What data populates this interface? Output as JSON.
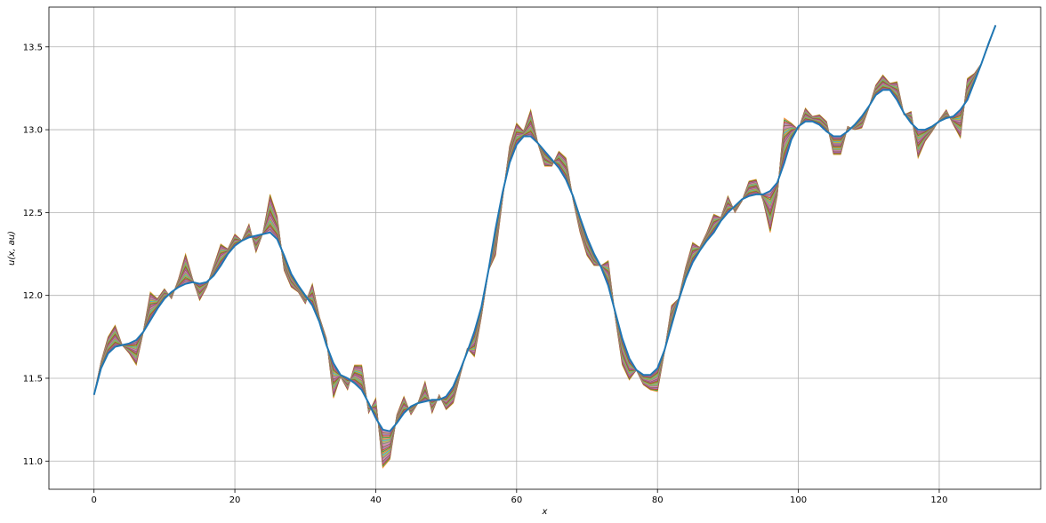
{
  "chart_data": {
    "type": "line",
    "xlabel": "x",
    "ylabel": "u(x, au)",
    "xlim": [
      -6.4,
      134.4
    ],
    "ylim": [
      10.83,
      13.74
    ],
    "grid": true,
    "x_ticks": [
      0,
      20,
      40,
      60,
      80,
      100,
      120
    ],
    "x_tick_labels": [
      "0",
      "20",
      "40",
      "60",
      "80",
      "100",
      "120"
    ],
    "y_ticks": [
      11.0,
      11.5,
      12.0,
      12.5,
      13.0,
      13.5
    ],
    "y_tick_labels": [
      "11.0",
      "11.5",
      "12.0",
      "12.5",
      "13.0",
      "13.5"
    ],
    "colors": {
      "smooth_series": "#1f77b4",
      "ensemble": [
        "#ff7f0e",
        "#2ca02c",
        "#d62728",
        "#9467bd",
        "#8c564b",
        "#e377c2",
        "#7f7f7f",
        "#bcbd22",
        "#17becf"
      ]
    },
    "x": [
      0,
      1,
      2,
      3,
      4,
      5,
      6,
      7,
      8,
      9,
      10,
      11,
      12,
      13,
      14,
      15,
      16,
      17,
      18,
      19,
      20,
      21,
      22,
      23,
      24,
      25,
      26,
      27,
      28,
      29,
      30,
      31,
      32,
      33,
      34,
      35,
      36,
      37,
      38,
      39,
      40,
      41,
      42,
      43,
      44,
      45,
      46,
      47,
      48,
      49,
      50,
      51,
      52,
      53,
      54,
      55,
      56,
      57,
      58,
      59,
      60,
      61,
      62,
      63,
      64,
      65,
      66,
      67,
      68,
      69,
      70,
      71,
      72,
      73,
      74,
      75,
      76,
      77,
      78,
      79,
      80,
      81,
      82,
      83,
      84,
      85,
      86,
      87,
      88,
      89,
      90,
      91,
      92,
      93,
      94,
      95,
      96,
      97,
      98,
      99,
      100,
      101,
      102,
      103,
      104,
      105,
      106,
      107,
      108,
      109,
      110,
      111,
      112,
      113,
      114,
      115,
      116,
      117,
      118,
      119,
      120,
      121,
      122,
      123,
      124,
      125,
      126,
      127,
      128
    ],
    "series": [
      {
        "role": "smooth",
        "values": [
          11.4,
          11.56,
          11.65,
          11.69,
          11.7,
          11.71,
          11.73,
          11.78,
          11.85,
          11.92,
          11.98,
          12.02,
          12.05,
          12.07,
          12.08,
          12.07,
          12.08,
          12.12,
          12.18,
          12.25,
          12.3,
          12.33,
          12.35,
          12.36,
          12.37,
          12.38,
          12.34,
          12.24,
          12.13,
          12.06,
          12.0,
          11.94,
          11.84,
          11.7,
          11.59,
          11.52,
          11.5,
          11.47,
          11.43,
          11.35,
          11.26,
          11.19,
          11.18,
          11.23,
          11.29,
          11.33,
          11.35,
          11.36,
          11.37,
          11.37,
          11.39,
          11.45,
          11.55,
          11.66,
          11.78,
          11.93,
          12.15,
          12.4,
          12.62,
          12.8,
          12.91,
          12.96,
          12.96,
          12.92,
          12.87,
          12.82,
          12.77,
          12.7,
          12.6,
          12.47,
          12.35,
          12.25,
          12.17,
          12.06,
          11.9,
          11.74,
          11.62,
          11.55,
          11.52,
          11.52,
          11.56,
          11.67,
          11.82,
          11.97,
          12.1,
          12.2,
          12.27,
          12.33,
          12.38,
          12.45,
          12.5,
          12.54,
          12.58,
          12.6,
          12.61,
          12.61,
          12.63,
          12.68,
          12.8,
          12.94,
          13.02,
          13.05,
          13.05,
          13.03,
          12.99,
          12.96,
          12.96,
          12.99,
          13.03,
          13.08,
          13.14,
          13.21,
          13.24,
          13.24,
          13.18,
          13.1,
          13.04,
          13.0,
          13.0,
          13.02,
          13.05,
          13.07,
          13.08,
          13.12,
          13.18,
          13.29,
          13.4,
          13.52,
          13.63
        ]
      },
      {
        "role": "noisy",
        "values": [
          11.4,
          11.6,
          11.75,
          11.82,
          11.7,
          11.65,
          11.58,
          11.78,
          12.02,
          11.98,
          12.04,
          11.98,
          12.1,
          12.25,
          12.1,
          11.97,
          12.05,
          12.18,
          12.31,
          12.28,
          12.37,
          12.33,
          12.43,
          12.26,
          12.38,
          12.61,
          12.48,
          12.15,
          12.05,
          12.02,
          11.95,
          12.07,
          11.87,
          11.74,
          11.38,
          11.51,
          11.43,
          11.58,
          11.58,
          11.29,
          11.38,
          10.96,
          11.01,
          11.28,
          11.39,
          11.28,
          11.35,
          11.48,
          11.29,
          11.4,
          11.31,
          11.35,
          11.52,
          11.68,
          11.63,
          11.87,
          12.15,
          12.24,
          12.58,
          12.9,
          13.04,
          12.99,
          13.12,
          12.92,
          12.78,
          12.78,
          12.87,
          12.83,
          12.58,
          12.38,
          12.24,
          12.18,
          12.18,
          12.21,
          11.87,
          11.58,
          11.49,
          11.55,
          11.46,
          11.43,
          11.42,
          11.66,
          11.94,
          11.98,
          12.17,
          12.32,
          12.29,
          12.38,
          12.49,
          12.47,
          12.6,
          12.5,
          12.57,
          12.69,
          12.7,
          12.57,
          12.38,
          12.6,
          13.07,
          13.04,
          13.0,
          13.13,
          13.08,
          13.09,
          13.05,
          12.85,
          12.85,
          13.02,
          13.0,
          13.01,
          13.13,
          13.27,
          13.33,
          13.28,
          13.29,
          13.09,
          13.11,
          12.83,
          12.93,
          12.99,
          13.06,
          13.12,
          13.03,
          12.95,
          13.31,
          13.34,
          13.4,
          13.51,
          13.63
        ]
      }
    ]
  }
}
